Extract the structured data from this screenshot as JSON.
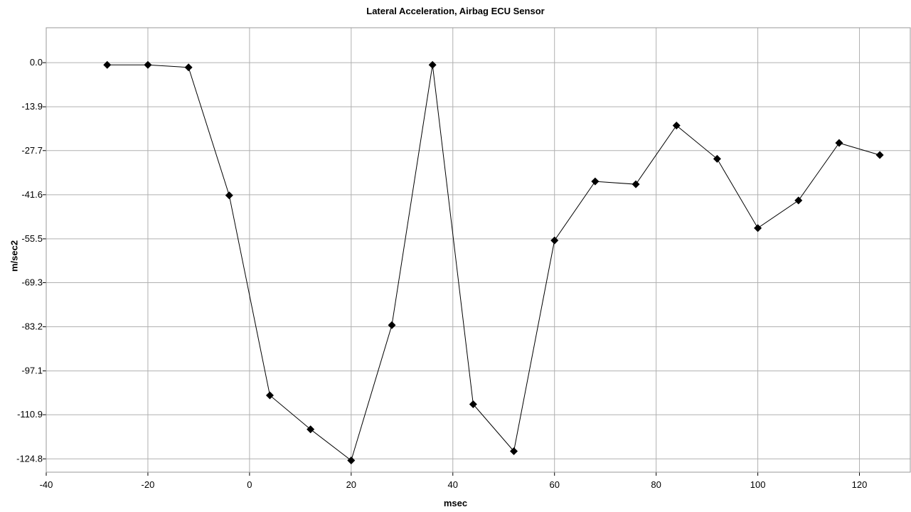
{
  "chart_data": {
    "type": "line",
    "title": "Lateral Acceleration, Airbag ECU Sensor",
    "xlabel": "msec",
    "ylabel": "m/sec2",
    "xlim": [
      -40,
      130
    ],
    "ylim": [
      -129,
      11
    ],
    "x_ticks": [
      -40,
      -20,
      0,
      20,
      40,
      60,
      80,
      100,
      120
    ],
    "y_ticks": [
      "0.0",
      "-13.9",
      "-27.7",
      "-41.6",
      "-55.5",
      "-69.3",
      "-83.2",
      "-97.1",
      "-110.9",
      "-124.8"
    ],
    "y_tick_values": [
      0.0,
      -13.9,
      -27.7,
      -41.6,
      -55.5,
      -69.3,
      -83.2,
      -97.1,
      -110.9,
      -124.8
    ],
    "grid": true,
    "line_color": "#000000",
    "marker": "diamond",
    "series": [
      {
        "x": [
          -28,
          -20,
          -12,
          -4,
          4,
          12,
          20,
          28,
          36,
          44,
          52,
          60,
          68,
          76,
          84,
          92,
          100,
          108,
          116,
          124
        ],
        "y": [
          -0.7,
          -0.7,
          -1.5,
          -41.8,
          -104.8,
          -115.5,
          -125.3,
          -82.7,
          -0.7,
          -107.6,
          -122.4,
          -56.0,
          -37.4,
          -38.3,
          -19.8,
          -30.3,
          -52.1,
          -43.4,
          -25.3,
          -29.1
        ]
      }
    ]
  }
}
